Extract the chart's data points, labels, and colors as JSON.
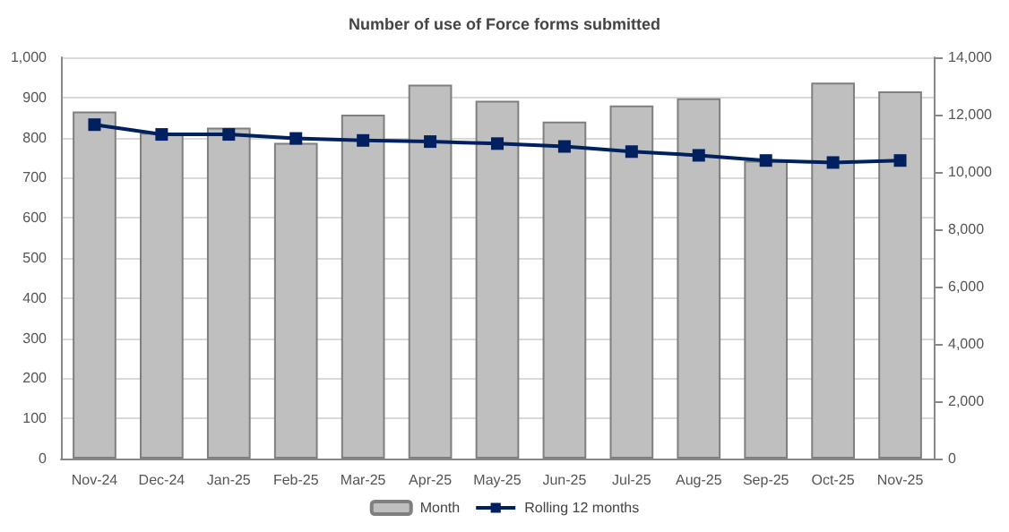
{
  "chart_data": {
    "type": "bar",
    "title": "Number of use of Force forms submitted",
    "categories": [
      "Nov-24",
      "Dec-24",
      "Jan-25",
      "Feb-25",
      "Mar-25",
      "Apr-25",
      "May-25",
      "Jun-25",
      "Jul-25",
      "Aug-25",
      "Sep-25",
      "Oct-25",
      "Nov-25"
    ],
    "series": [
      {
        "name": "Month",
        "color": "#bfbfbf",
        "values": [
          865,
          812,
          825,
          787,
          857,
          932,
          892,
          840,
          880,
          898,
          742,
          937,
          915
        ]
      },
      {
        "name": "Rolling 12 months",
        "type": "line",
        "axis": "y2",
        "color": "#002060",
        "marker": "square",
        "values": [
          11650,
          11310,
          11310,
          11170,
          11100,
          11060,
          10990,
          10890,
          10710,
          10580,
          10400,
          10330,
          10400
        ]
      }
    ],
    "ylim": [
      0,
      1000
    ],
    "yticks": [
      0,
      100,
      200,
      300,
      400,
      500,
      600,
      700,
      800,
      900,
      {
        "value": 1000,
        "label": "1,000"
      }
    ],
    "y2lim": [
      0,
      14000
    ],
    "y2ticks": [
      0,
      {
        "value": 2000,
        "label": "2,000"
      },
      {
        "value": 4000,
        "label": "4,000"
      },
      {
        "value": 6000,
        "label": "6,000"
      },
      {
        "value": 8000,
        "label": "8,000"
      },
      {
        "value": 10000,
        "label": "10,000"
      },
      {
        "value": 12000,
        "label": "12,000"
      },
      {
        "value": 14000,
        "label": "14,000"
      }
    ],
    "grid": "y",
    "legend": "bottom"
  }
}
